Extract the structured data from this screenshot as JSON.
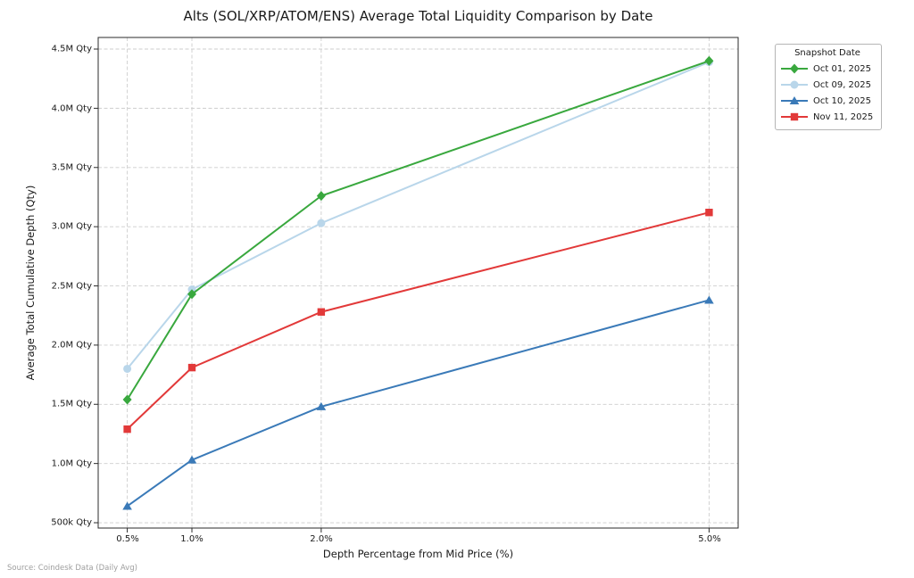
{
  "title": "Alts (SOL/XRP/ATOM/ENS) Average Total Liquidity Comparison by Date",
  "source_note": "Source: Coindesk Data (Daily Avg)",
  "chart_data": {
    "type": "line",
    "title": "Alts (SOL/XRP/ATOM/ENS) Average Total Liquidity Comparison by Date",
    "xlabel": "Depth Percentage from Mid Price (%)",
    "ylabel": "Average Total Cumulative Depth (Qty)",
    "x_percent": [
      0.5,
      1.0,
      2.0,
      5.0
    ],
    "xtick_labels": [
      "0.5%",
      "1.0%",
      "2.0%",
      "5.0%"
    ],
    "ytick_values_M": [
      0.5,
      1.0,
      1.5,
      2.0,
      2.5,
      3.0,
      3.5,
      4.0,
      4.5
    ],
    "ytick_labels": [
      "500k Qty",
      "1.0M Qty",
      "1.5M Qty",
      "2.0M Qty",
      "2.5M Qty",
      "3.0M Qty",
      "3.5M Qty",
      "4.0M Qty",
      "4.5M Qty"
    ],
    "xlim_percent": [
      0.275,
      5.225
    ],
    "ylim_M": [
      0.455,
      4.598
    ],
    "grid": true,
    "grid_style": "dashed",
    "legend_title": "Snapshot Date",
    "legend_position": "upper right outside plot",
    "units": "millions of quantity",
    "series": [
      {
        "name": "Oct 01, 2025",
        "color": "#39a83e",
        "marker": "diamond",
        "values_M": [
          1.54,
          2.43,
          3.26,
          4.4
        ]
      },
      {
        "name": "Oct 09, 2025",
        "color": "#b9d6ea",
        "marker": "circle",
        "values_M": [
          1.8,
          2.47,
          3.03,
          4.39
        ]
      },
      {
        "name": "Oct 10, 2025",
        "color": "#3a7ab8",
        "marker": "triangle-up",
        "values_M": [
          0.64,
          1.03,
          1.48,
          2.38
        ]
      },
      {
        "name": "Nov 11, 2025",
        "color": "#e23939",
        "marker": "square",
        "values_M": [
          1.29,
          1.81,
          2.28,
          3.12
        ]
      }
    ],
    "colors": {
      "gridline": "#cdcdcd",
      "spine": "#2b2b2b",
      "text": "#1a1a1a",
      "source_text": "#9e9e9e"
    }
  }
}
